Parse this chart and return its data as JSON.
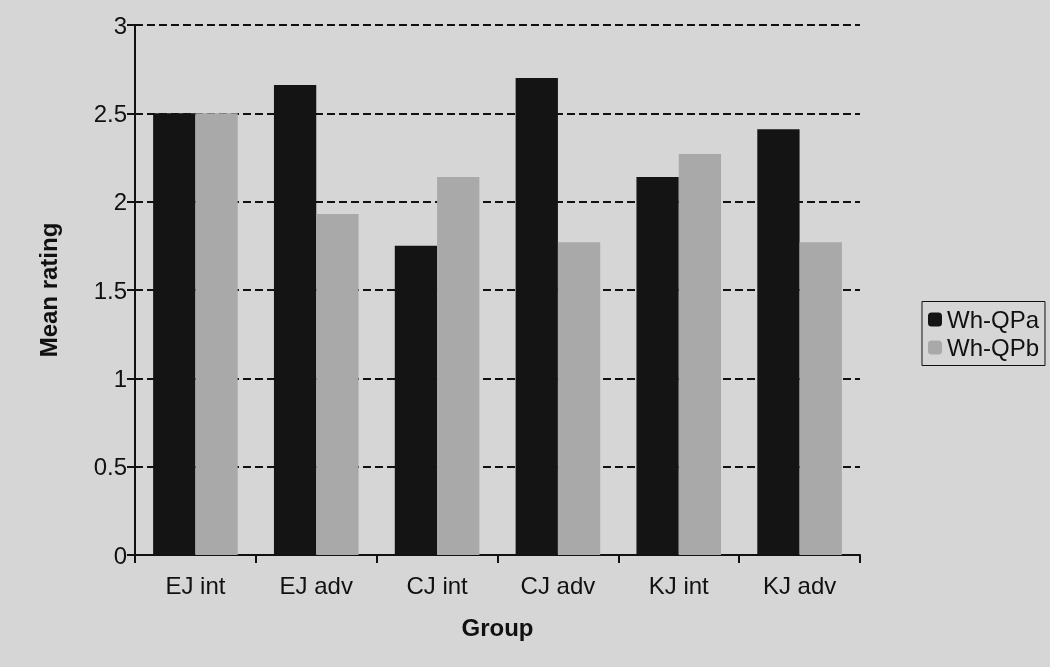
{
  "chart_data": {
    "type": "bar",
    "xlabel": "Group",
    "ylabel": "Mean rating",
    "categories": [
      "EJ int",
      "EJ adv",
      "CJ int",
      "CJ adv",
      "KJ int",
      "KJ adv"
    ],
    "series": [
      {
        "name": "Wh-QPa",
        "color": "#141414",
        "values": [
          2.5,
          2.66,
          1.75,
          2.7,
          2.14,
          2.41
        ]
      },
      {
        "name": "Wh-QPb",
        "color": "#a9a9a9",
        "values": [
          2.5,
          1.93,
          2.14,
          1.77,
          2.27,
          1.77
        ]
      }
    ],
    "ylim": [
      0,
      3
    ],
    "yticks": [
      0,
      0.5,
      1,
      1.5,
      2,
      2.5,
      3
    ],
    "grid": "y",
    "line_style": "dashed",
    "legend": "right"
  }
}
